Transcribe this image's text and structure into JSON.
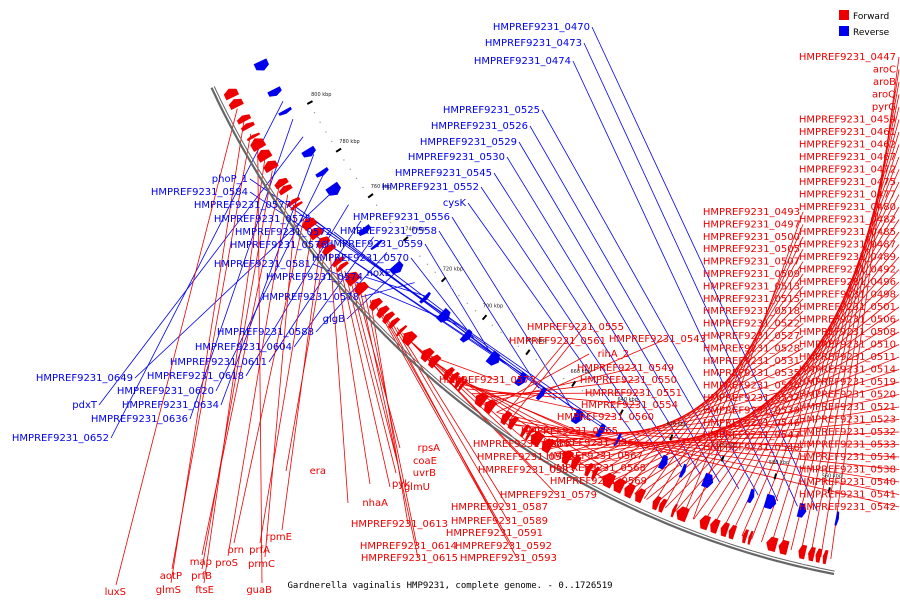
{
  "caption": "Gardnerella vaginalis HMP9231, complete genome. - 0..1726519",
  "legend": [
    {
      "name": "Forward",
      "color": "#ee0000"
    },
    {
      "name": "Reverse",
      "color": "#0000ee"
    }
  ],
  "colors": {
    "forward": "#ee0000",
    "reverse": "#0000ee",
    "backbone": "#666666",
    "tick": "#000000"
  },
  "kbp_ticks": [
    "560 kbp",
    "580 kbp",
    "600 kbp",
    "620 kbp",
    "640 kbp",
    "660 kbp",
    "680 kbp",
    "700 kbp",
    "720 kbp",
    "740 kbp",
    "760 kbp",
    "780 kbp",
    "800 kbp"
  ],
  "reverse_genes": [
    "HMPREF9231_0470",
    "HMPREF9231_0473",
    "HMPREF9231_0474",
    "HMPREF9231_0525",
    "HMPREF9231_0526",
    "HMPREF9231_0529",
    "HMPREF9231_0530",
    "HMPREF9231_0545",
    "HMPREF9231_0552",
    "cysK",
    "phoP_1",
    "HMPREF9231_0584",
    "HMPREF9231_0577",
    "HMPREF9231_0556",
    "HMPREF9231_0575",
    "HMPREF9231_0558",
    "HMPREF9231_0572",
    "HMPREF9231_0576",
    "HMPREF9231_0559",
    "HMPREF9231_0570",
    "HMPREF9231_0581",
    "noxE",
    "HMPREF9231_0574",
    "HMPREF9231_0578",
    "glgB",
    "HMPREF9231_0588",
    "HMPREF9231_0604",
    "HMPREF9231_0611",
    "HMPREF9231_0618",
    "HMPREF9231_0649",
    "HMPREF9231_0620",
    "HMPREF9231_0634",
    "pdxT",
    "HMPREF9231_0636",
    "HMPREF9231_0652"
  ],
  "forward_right_genes": [
    "HMPREF9231_0447",
    "aroC",
    "aroB",
    "aroQ",
    "pyrG",
    "HMPREF9231_0459",
    "HMPREF9231_0461",
    "HMPREF9231_0462",
    "HMPREF9231_0467",
    "HMPREF9231_0472",
    "HMPREF9231_0475",
    "HMPREF9231_0477",
    "HMPREF9231_0480",
    "HMPREF9231_0482",
    "HMPREF9231_0485",
    "HMPREF9231_0487",
    "HMPREF9231_0489",
    "HMPREF9231_0492",
    "HMPREF9231_0496",
    "HMPREF9231_0498",
    "HMPREF9231_0501",
    "HMPREF9231_0506",
    "HMPREF9231_0508",
    "HMPREF9231_0510",
    "HMPREF9231_0511",
    "HMPREF9231_0514",
    "HMPREF9231_0519",
    "HMPREF9231_0520",
    "HMPREF9231_0521",
    "HMPREF9231_0523",
    "HMPREF9231_0532",
    "HMPREF9231_0533",
    "HMPREF9231_0534",
    "HMPREF9231_0538",
    "HMPREF9231_0540",
    "HMPREF9231_0541",
    "HMPREF9231_0542"
  ],
  "forward_mid_genes": [
    "HMPREF9231_0493",
    "HMPREF9231_0497",
    "HMPREF9231_0500",
    "HMPREF9231_0505",
    "HMPREF9231_0507",
    "HMPREF9231_0509",
    "HMPREF9231_0513",
    "HMPREF9231_0515",
    "HMPREF9231_0518",
    "HMPREF9231_0522",
    "HMPREF9231_0527",
    "HMPREF9231_0528",
    "HMPREF9231_0531",
    "HMPREF9231_0535",
    "HMPREF9231_0536",
    "HMPREF9231_0537",
    "HMPREF9231_0539",
    "HMPREF9231_0546",
    "HMPREF9231_0547",
    "HMPREF9231_0548"
  ],
  "forward_center_genes": [
    "HMPREF9231_0555",
    "HMPREF9231_0561",
    "HMPREF9231_0543",
    "rihA_2",
    "HMPREF9231_0549",
    "HMPREF9231_0550",
    "HMPREF9231_0551",
    "HMPREF9231_0554",
    "HMPREF9231_0560",
    "HMPREF9231_0565",
    "HMPREF9231_0566",
    "HMPREF9231_0567",
    "HMPREF9231_0568",
    "HMPREF9231_0569",
    "HMPREF9231_0573",
    "HMPREF9231_0580",
    "HMPREF9231_0582",
    "HMPREF9231_0583",
    "HMPREF9231_0579",
    "HMPREF9231_0587",
    "HMPREF9231_0589",
    "HMPREF9231_0591",
    "HMPREF9231_0592",
    "HMPREF9231_0593",
    "HMPREF9231_0613",
    "HMPREF9231_0614",
    "HMPREF9231_0615",
    "rpsA",
    "coaE",
    "uvrB",
    "glmU",
    "pyk",
    "nhaA",
    "era"
  ],
  "forward_bottom_genes": [
    "rpmE",
    "prfA",
    "orn",
    "prmC",
    "proS",
    "map",
    "prfB",
    "ftsE",
    "guaB",
    "aotP",
    "glmS",
    "luxS"
  ]
}
